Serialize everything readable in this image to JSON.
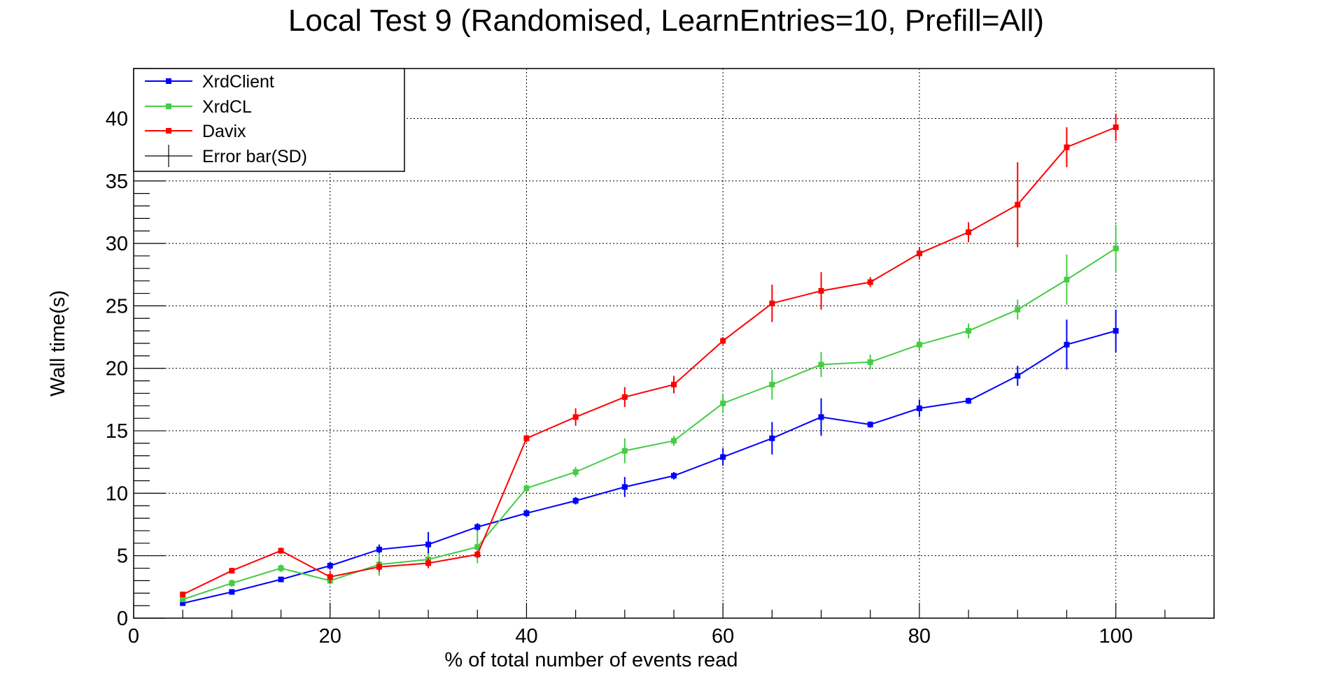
{
  "chart_data": {
    "type": "line",
    "title": "Local Test 9 (Randomised, LearnEntries=10, Prefill=All)",
    "xlabel": "% of total number of events read",
    "ylabel": "Wall time(s)",
    "xlim": [
      0,
      110
    ],
    "ylim": [
      0,
      44
    ],
    "xticks": [
      0,
      20,
      40,
      60,
      80,
      100
    ],
    "yticks": [
      0,
      5,
      10,
      15,
      20,
      25,
      30,
      35,
      40
    ],
    "x_minor_step": 5,
    "y_minor_step": 1,
    "grid": true,
    "legend_position": "top-left",
    "x": [
      5,
      10,
      15,
      20,
      25,
      30,
      35,
      40,
      45,
      50,
      55,
      60,
      65,
      70,
      75,
      80,
      85,
      90,
      95,
      100
    ],
    "series": [
      {
        "name": "XrdClient",
        "color": "#0000ff",
        "values": [
          1.2,
          2.1,
          3.1,
          4.2,
          5.5,
          5.9,
          7.3,
          8.4,
          9.4,
          10.5,
          11.4,
          12.9,
          14.4,
          16.1,
          15.5,
          16.8,
          17.4,
          19.4,
          21.9,
          23.0
        ],
        "errors": [
          0.15,
          0.2,
          0.2,
          0.3,
          0.4,
          1.0,
          0.3,
          0.3,
          0.3,
          0.8,
          0.3,
          0.7,
          1.3,
          1.5,
          0.25,
          0.7,
          0.25,
          0.8,
          2.0,
          1.7
        ]
      },
      {
        "name": "XrdCL",
        "color": "#44cc44",
        "values": [
          1.5,
          2.8,
          4.0,
          3.0,
          4.3,
          4.7,
          5.7,
          10.4,
          11.7,
          13.4,
          14.2,
          17.2,
          18.7,
          20.3,
          20.5,
          21.9,
          23.0,
          24.7,
          27.1,
          29.6
        ],
        "errors": [
          0.2,
          0.3,
          0.3,
          0.3,
          0.9,
          0.5,
          1.3,
          0.3,
          0.4,
          1.0,
          0.4,
          0.8,
          1.2,
          1.0,
          0.6,
          0.5,
          0.6,
          0.8,
          2.0,
          1.9
        ]
      },
      {
        "name": "Davix",
        "color": "#ff0000",
        "values": [
          1.9,
          3.8,
          5.4,
          3.3,
          4.1,
          4.4,
          5.1,
          14.4,
          16.1,
          17.7,
          18.7,
          22.2,
          25.2,
          26.2,
          26.9,
          29.2,
          30.9,
          33.1,
          37.7,
          39.3
        ],
        "errors": [
          0.15,
          0.2,
          0.25,
          0.5,
          0.4,
          0.4,
          0.3,
          0.3,
          0.7,
          0.8,
          0.7,
          0.3,
          1.5,
          1.5,
          0.4,
          0.5,
          0.8,
          3.4,
          1.6,
          1.1
        ]
      }
    ],
    "legend_entries": [
      "XrdClient",
      "XrdCL",
      "Davix",
      "Error bar(SD)"
    ],
    "error_legend_color": "#000000"
  }
}
